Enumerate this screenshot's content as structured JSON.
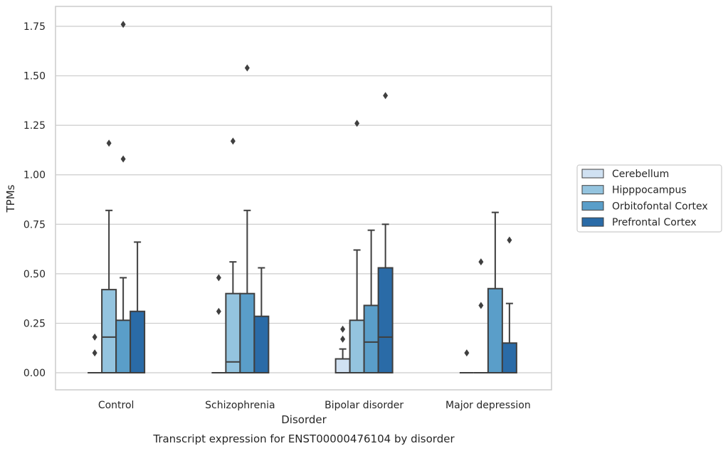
{
  "chart_data": {
    "type": "boxplot",
    "ylabel": "TPMs",
    "xlabel": "Disorder",
    "caption": "Transcript expression for ENST00000476104 by disorder",
    "ylim": [
      -0.085,
      1.85
    ],
    "yticks": [
      0.0,
      0.25,
      0.5,
      0.75,
      1.0,
      1.25,
      1.5,
      1.75
    ],
    "ytick_labels": [
      "0.00",
      "0.25",
      "0.50",
      "0.75",
      "1.00",
      "1.25",
      "1.50",
      "1.75"
    ],
    "grid": "horizontal",
    "legend_position": "outside-right",
    "categories": [
      "Control",
      "Schizophrenia",
      "Bipolar disorder",
      "Major depression"
    ],
    "series": [
      {
        "name": "Cerebellum",
        "color": "#d0e1f2",
        "boxes": [
          {
            "q1": 0,
            "median": 0,
            "q3": 0,
            "whisker_low": 0,
            "whisker_high": 0,
            "outliers": [
              0.1,
              0.18
            ]
          },
          {
            "q1": 0,
            "median": 0,
            "q3": 0,
            "whisker_low": 0,
            "whisker_high": 0,
            "outliers": [
              0.31,
              0.48
            ]
          },
          {
            "q1": 0,
            "median": 0,
            "q3": 0.07,
            "whisker_low": 0,
            "whisker_high": 0.12,
            "outliers": [
              0.17,
              0.22
            ]
          },
          {
            "q1": 0,
            "median": 0,
            "q3": 0,
            "whisker_low": 0,
            "whisker_high": 0,
            "outliers": [
              0.1
            ]
          }
        ]
      },
      {
        "name": "Hipppocampus",
        "color": "#94c4df",
        "boxes": [
          {
            "q1": 0,
            "median": 0.18,
            "q3": 0.42,
            "whisker_low": 0,
            "whisker_high": 0.82,
            "outliers": [
              1.16
            ]
          },
          {
            "q1": 0,
            "median": 0.055,
            "q3": 0.4,
            "whisker_low": 0,
            "whisker_high": 0.56,
            "outliers": [
              1.17
            ]
          },
          {
            "q1": 0,
            "median": 0,
            "q3": 0.265,
            "whisker_low": 0,
            "whisker_high": 0.62,
            "outliers": [
              1.26
            ]
          },
          {
            "q1": 0,
            "median": 0,
            "q3": 0,
            "whisker_low": 0,
            "whisker_high": 0,
            "outliers": [
              0.34,
              0.56
            ]
          }
        ]
      },
      {
        "name": "Orbitofontal Cortex",
        "color": "#5a9ec9",
        "boxes": [
          {
            "q1": 0,
            "median": 0,
            "q3": 0.265,
            "whisker_low": 0,
            "whisker_high": 0.48,
            "outliers": [
              1.08,
              1.76
            ]
          },
          {
            "q1": 0,
            "median": 0,
            "q3": 0.4,
            "whisker_low": 0,
            "whisker_high": 0.82,
            "outliers": [
              1.54
            ]
          },
          {
            "q1": 0,
            "median": 0.155,
            "q3": 0.34,
            "whisker_low": 0,
            "whisker_high": 0.72,
            "outliers": []
          },
          {
            "q1": 0,
            "median": 0,
            "q3": 0.425,
            "whisker_low": 0,
            "whisker_high": 0.81,
            "outliers": []
          }
        ]
      },
      {
        "name": "Prefrontal Cortex",
        "color": "#2a6ba7",
        "boxes": [
          {
            "q1": 0,
            "median": 0,
            "q3": 0.31,
            "whisker_low": 0,
            "whisker_high": 0.66,
            "outliers": []
          },
          {
            "q1": 0,
            "median": 0,
            "q3": 0.285,
            "whisker_low": 0,
            "whisker_high": 0.53,
            "outliers": []
          },
          {
            "q1": 0,
            "median": 0.18,
            "q3": 0.53,
            "whisker_low": 0,
            "whisker_high": 0.75,
            "outliers": [
              1.4
            ]
          },
          {
            "q1": 0,
            "median": 0,
            "q3": 0.15,
            "whisker_low": 0,
            "whisker_high": 0.35,
            "outliers": [
              0.67
            ]
          }
        ]
      }
    ]
  }
}
